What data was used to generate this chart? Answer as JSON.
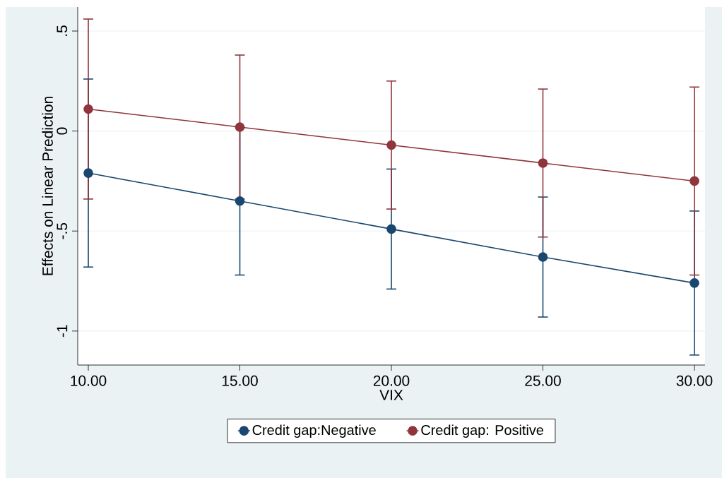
{
  "chart_data": {
    "type": "line",
    "xlabel": "VIX",
    "ylabel": "Effects on Linear Prediction",
    "x": [
      10,
      15,
      20,
      25,
      30
    ],
    "series": [
      {
        "name": "Credit gap:Negative",
        "color": "#1a476f",
        "values": [
          -0.21,
          -0.35,
          -0.49,
          -0.63,
          -0.76
        ],
        "errors": [
          0.47,
          0.37,
          0.3,
          0.3,
          0.36
        ]
      },
      {
        "name": "Credit gap: Positive",
        "color": "#90353b",
        "values": [
          0.11,
          0.02,
          -0.07,
          -0.16,
          -0.25
        ],
        "errors": [
          0.45,
          0.36,
          0.32,
          0.37,
          0.47
        ]
      }
    ],
    "xlim": [
      9.65,
      30.35
    ],
    "ylim": [
      -1.17,
      0.62
    ],
    "xticks": [
      {
        "value": 10,
        "label": "10.00"
      },
      {
        "value": 15,
        "label": "15.00"
      },
      {
        "value": 20,
        "label": "20.00"
      },
      {
        "value": 25,
        "label": "25.00"
      },
      {
        "value": 30,
        "label": "30.00"
      }
    ],
    "yticks": [
      -1,
      {
        "value": -0.5,
        "label": "-.5"
      },
      0,
      {
        "value": 0.5,
        "label": ".5"
      }
    ],
    "grid": "y",
    "legend": "bottom",
    "marker": "circle",
    "line_style": "solid"
  }
}
